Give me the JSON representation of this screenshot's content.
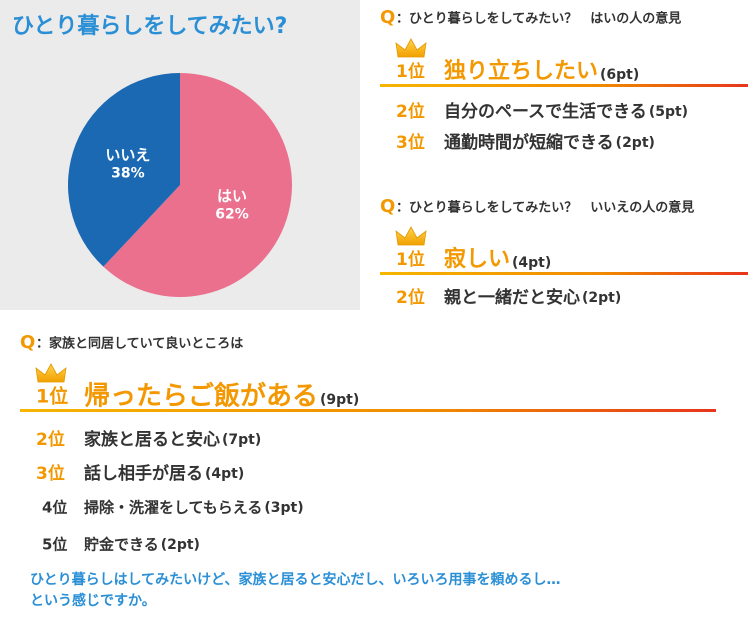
{
  "chart_data": {
    "type": "pie",
    "title": "ひとり暮らしをしてみたい?",
    "categories": [
      "はい",
      "いいえ"
    ],
    "values": [
      62,
      38
    ],
    "value_labels": [
      "62%",
      "38%"
    ],
    "colors": [
      "#ea708e",
      "#1b69b3"
    ]
  },
  "sections": [
    {
      "q": "Q",
      "title": "：ひとり暮らしをしてみたい？　はいの人の意見",
      "items": [
        {
          "rank": "1位",
          "text": "独り立ちしたい",
          "points": "(6pt)"
        },
        {
          "rank": "2位",
          "text": "自分のペースで生活できる",
          "points": "(5pt)"
        },
        {
          "rank": "3位",
          "text": "通勤時間が短縮できる",
          "points": "(2pt)"
        }
      ]
    },
    {
      "q": "Q",
      "title": "：ひとり暮らしをしてみたい？　いいえの人の意見",
      "items": [
        {
          "rank": "1位",
          "text": "寂しい",
          "points": "(4pt)"
        },
        {
          "rank": "2位",
          "text": "親と一緒だと安心",
          "points": "(2pt)"
        }
      ]
    },
    {
      "q": "Q",
      "title": "：家族と同居していて良いところは",
      "items": [
        {
          "rank": "1位",
          "text": "帰ったらご飯がある",
          "points": "(9pt)"
        },
        {
          "rank": "2位",
          "text": "家族と居ると安心",
          "points": "(7pt)"
        },
        {
          "rank": "3位",
          "text": "話し相手が居る",
          "points": "(4pt)"
        },
        {
          "rank": "4位",
          "text": "掃除・洗濯をしてもらえる",
          "points": "(3pt)"
        },
        {
          "rank": "5位",
          "text": "貯金できる",
          "points": "(2pt)"
        }
      ]
    }
  ],
  "footer": [
    "ひとり暮らしはしてみたいけど、家族と居ると安心だし、いろいろ用事を頼めるし…",
    "という感じですか。"
  ]
}
